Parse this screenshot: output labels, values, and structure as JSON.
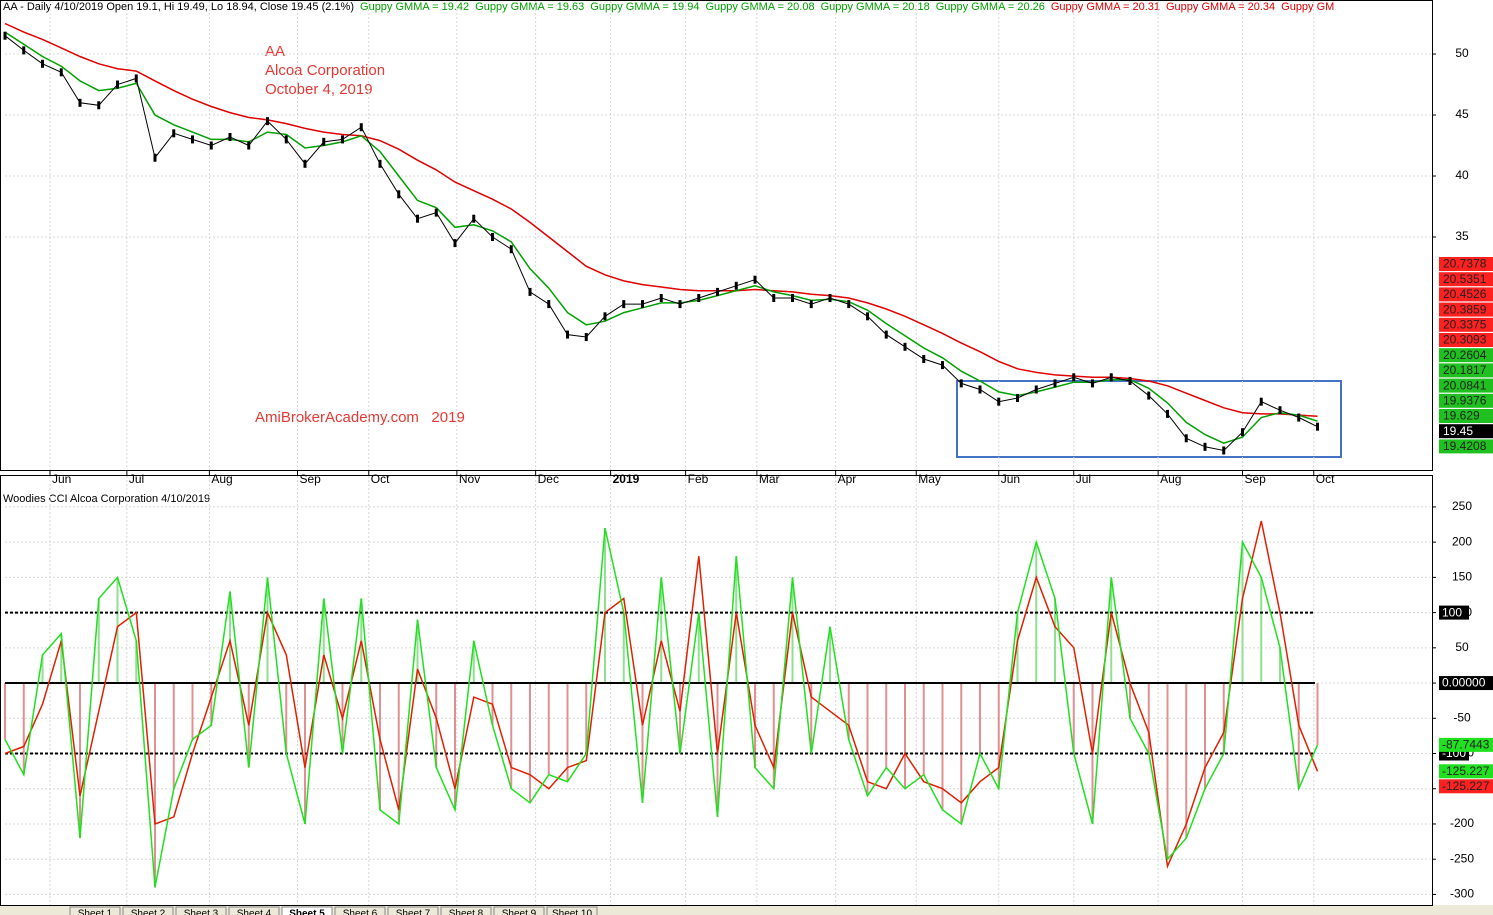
{
  "chart_data": [
    {
      "type": "line",
      "header": {
        "text": "AA - Daily 4/10/2019 Open 19.1, Hi 19.49, Lo 18.94, Close 19.45 (2.1%)",
        "items": [
          {
            "label": "Guppy GMMA = 19.42",
            "color": "#00a000"
          },
          {
            "label": "Guppy GMMA = 19.63",
            "color": "#00a000"
          },
          {
            "label": "Guppy GMMA = 19.94",
            "color": "#00a000"
          },
          {
            "label": "Guppy GMMA = 20.08",
            "color": "#00a000"
          },
          {
            "label": "Guppy GMMA = 20.18",
            "color": "#00a000"
          },
          {
            "label": "Guppy GMMA = 20.26",
            "color": "#00a000"
          },
          {
            "label": "Guppy GMMA = 20.31",
            "color": "#e00000"
          },
          {
            "label": "Guppy GMMA = 20.34",
            "color": "#e00000"
          },
          {
            "label": "Guppy GM",
            "color": "#e00000"
          }
        ]
      },
      "annotations": [
        "AA",
        "Alcoa Corporation",
        "October 4, 2019",
        "AmiBrokerAcademy.com   2019"
      ],
      "x": [
        0,
        1,
        2,
        3,
        4,
        5,
        6,
        7,
        8,
        9,
        10,
        11,
        12,
        13,
        14,
        15,
        16,
        17,
        18,
        19,
        20,
        21,
        22,
        23,
        24,
        25,
        26,
        27,
        28,
        29,
        30,
        31,
        32,
        33,
        34,
        35,
        36,
        37,
        38,
        39,
        40,
        41,
        42,
        43,
        44,
        45,
        46,
        47,
        48,
        49,
        50,
        51,
        52,
        53,
        54,
        55,
        56,
        57,
        58,
        59,
        60,
        61,
        62,
        63,
        64,
        65,
        66,
        67,
        68,
        69,
        70
      ],
      "series": [
        {
          "name": "Close",
          "color": "#000000",
          "values": [
            51.5,
            50.3,
            49.2,
            48.5,
            46,
            45.8,
            47.5,
            48,
            41.5,
            43.5,
            43,
            42.5,
            43.2,
            42.5,
            44.5,
            43,
            41,
            42.8,
            43,
            44,
            41,
            38.5,
            36.5,
            37,
            34.5,
            36.5,
            35,
            34,
            30.5,
            29.5,
            27,
            26.8,
            28.5,
            29.5,
            29.5,
            30,
            29.5,
            30,
            30.5,
            31,
            31.5,
            30,
            30,
            29.5,
            30,
            29.5,
            28.5,
            27,
            26,
            25,
            24.5,
            23,
            22.5,
            21.5,
            21.8,
            22.5,
            23,
            23.5,
            23,
            23.5,
            23.2,
            22,
            20.5,
            18.5,
            17.8,
            17.5,
            19,
            21.5,
            20.8,
            20.2,
            19.45
          ]
        },
        {
          "name": "Guppy GMMA",
          "color": "#00a000",
          "values": [
            51.8,
            50.8,
            49.8,
            49,
            47.8,
            47,
            47.2,
            47.6,
            45,
            44.2,
            43.6,
            43,
            43,
            42.8,
            43.6,
            43.4,
            42.3,
            42.5,
            42.8,
            43.3,
            42,
            40,
            38,
            37.4,
            35.8,
            36,
            35.5,
            34.6,
            32.4,
            30.8,
            28.8,
            27.8,
            28.1,
            28.8,
            29.2,
            29.6,
            29.6,
            29.8,
            30.2,
            30.6,
            31,
            30.5,
            30.2,
            29.8,
            29.9,
            29.7,
            29,
            27.9,
            26.9,
            25.9,
            25.1,
            24,
            23.2,
            22.3,
            22,
            22.3,
            22.7,
            23.1,
            23.1,
            23.3,
            23.3,
            22.6,
            21.4,
            19.8,
            18.8,
            18.1,
            18.6,
            20.2,
            20.6,
            20.4,
            19.9
          ]
        },
        {
          "name": "Guppy GMMA",
          "color": "#e00000",
          "values": [
            52.5,
            51.8,
            51.2,
            50.5,
            49.8,
            49.2,
            48.8,
            48.6,
            47.8,
            47,
            46.3,
            45.7,
            45.2,
            44.8,
            44.6,
            44.3,
            43.9,
            43.6,
            43.4,
            43.3,
            42.9,
            42.2,
            41.3,
            40.5,
            39.5,
            38.8,
            38.1,
            37.3,
            36.2,
            35,
            33.8,
            32.6,
            31.9,
            31.4,
            31.1,
            30.9,
            30.7,
            30.6,
            30.6,
            30.6,
            30.7,
            30.6,
            30.5,
            30.3,
            30.2,
            30,
            29.6,
            29.1,
            28.5,
            27.8,
            27.1,
            26.3,
            25.6,
            24.8,
            24.2,
            23.9,
            23.7,
            23.6,
            23.5,
            23.5,
            23.4,
            23.2,
            22.8,
            22.2,
            21.6,
            21,
            20.6,
            20.5,
            20.5,
            20.4,
            20.3
          ]
        }
      ],
      "xlim": [
        0,
        76
      ],
      "xticks": [
        {
          "value": 2.4,
          "label": "Jun"
        },
        {
          "value": 6.5,
          "label": "Jul"
        },
        {
          "value": 10.9,
          "label": "Aug"
        },
        {
          "value": 15.6,
          "label": "Sep"
        },
        {
          "value": 19.4,
          "label": "Oct"
        },
        {
          "value": 24.1,
          "label": "Nov"
        },
        {
          "value": 28.3,
          "label": "Dec"
        },
        {
          "value": 32.3,
          "label": "2019"
        },
        {
          "value": 36.3,
          "label": "Feb"
        },
        {
          "value": 40.1,
          "label": "Mar"
        },
        {
          "value": 44.3,
          "label": "Apr"
        },
        {
          "value": 48.6,
          "label": "May"
        },
        {
          "value": 53,
          "label": "Jun"
        },
        {
          "value": 57,
          "label": "Jul"
        },
        {
          "value": 61.5,
          "label": "Aug"
        },
        {
          "value": 66,
          "label": "Sep"
        },
        {
          "value": 69.8,
          "label": "Oct"
        }
      ],
      "ylim": [
        15.9,
        53.2
      ],
      "yticks": [
        35,
        40,
        45,
        50
      ],
      "grid": true,
      "price_badges": [
        {
          "value": 20.7378,
          "color": "#ff2020"
        },
        {
          "value": 20.5351,
          "color": "#ff2020"
        },
        {
          "value": 20.4526,
          "color": "#ff2020"
        },
        {
          "value": 20.3859,
          "color": "#ff2020"
        },
        {
          "value": 20.3375,
          "color": "#ff2020"
        },
        {
          "value": 20.3093,
          "color": "#ff2020"
        },
        {
          "value": 20.2604,
          "color": "#20c020"
        },
        {
          "value": 20.1817,
          "color": "#20c020"
        },
        {
          "value": 20.0841,
          "color": "#20c020"
        },
        {
          "value": 19.9376,
          "color": "#20c020"
        },
        {
          "value": 19.629,
          "color": "#20c020"
        },
        {
          "value": 19.45,
          "color": "#000000"
        },
        {
          "value": 19.4208,
          "color": "#20c020"
        }
      ]
    },
    {
      "type": "cci",
      "title": "Woodies CCI  Alcoa Corporation 4/10/2019",
      "x": [
        0,
        1,
        2,
        3,
        4,
        5,
        6,
        7,
        8,
        9,
        10,
        11,
        12,
        13,
        14,
        15,
        16,
        17,
        18,
        19,
        20,
        21,
        22,
        23,
        24,
        25,
        26,
        27,
        28,
        29,
        30,
        31,
        32,
        33,
        34,
        35,
        36,
        37,
        38,
        39,
        40,
        41,
        42,
        43,
        44,
        45,
        46,
        47,
        48,
        49,
        50,
        51,
        52,
        53,
        54,
        55,
        56,
        57,
        58,
        59,
        60,
        61,
        62,
        63,
        64,
        65,
        66,
        67,
        68,
        69,
        70
      ],
      "series": [
        {
          "color": "#20e020",
          "values": [
            -80,
            -130,
            40,
            70,
            -220,
            120,
            150,
            60,
            -290,
            -150,
            -80,
            -60,
            130,
            -120,
            150,
            -100,
            -200,
            120,
            -100,
            120,
            -180,
            -200,
            90,
            -120,
            -180,
            60,
            -60,
            -150,
            -170,
            -130,
            -140,
            -100,
            220,
            100,
            -170,
            150,
            -100,
            100,
            -190,
            180,
            -120,
            -150,
            150,
            -100,
            80,
            -80,
            -160,
            -120,
            -150,
            -130,
            -180,
            -200,
            -100,
            -150,
            100,
            200,
            120,
            -100,
            -200,
            150,
            -50,
            -100,
            -250,
            -220,
            -150,
            -100,
            200,
            150,
            50,
            -150,
            -87.7443
          ]
        },
        {
          "color": "#e02000",
          "values": [
            -100,
            -90,
            -30,
            60,
            -160,
            -40,
            80,
            100,
            -200,
            -190,
            -100,
            -20,
            60,
            -60,
            100,
            40,
            -120,
            40,
            -50,
            60,
            -80,
            -180,
            20,
            -50,
            -150,
            -20,
            -30,
            -120,
            -130,
            -150,
            -120,
            -110,
            100,
            120,
            -60,
            60,
            -40,
            180,
            -100,
            100,
            -60,
            -120,
            100,
            -20,
            -40,
            -60,
            -140,
            -150,
            -100,
            -140,
            -150,
            -170,
            -140,
            -120,
            60,
            150,
            80,
            50,
            -100,
            100,
            0,
            -70,
            -260,
            -200,
            -120,
            -70,
            120,
            230,
            100,
            -60,
            -125.227
          ]
        }
      ],
      "xlim": [
        0,
        76
      ],
      "ylim": [
        -315,
        274
      ],
      "yticks": [
        250,
        200,
        150,
        100,
        50,
        0,
        -50,
        -100,
        -150,
        -200,
        -250,
        -300
      ],
      "levels": [
        100,
        {
          "value": 0,
          "label": "0.00000"
        },
        -100
      ],
      "cci_badges": [
        {
          "value": -87.7443,
          "color": "#20e020"
        },
        {
          "value": -125.227,
          "color": "#20e020"
        },
        {
          "value": -125.227,
          "color": "#ff2020"
        }
      ],
      "grid": true
    }
  ],
  "tabs": [
    "Sheet 1",
    "Sheet 2",
    "Sheet 3",
    "Sheet 4",
    "Sheet 5",
    "Sheet 6",
    "Sheet 7",
    "Sheet 8",
    "Sheet 9",
    "Sheet 10"
  ],
  "active_tab": 4
}
